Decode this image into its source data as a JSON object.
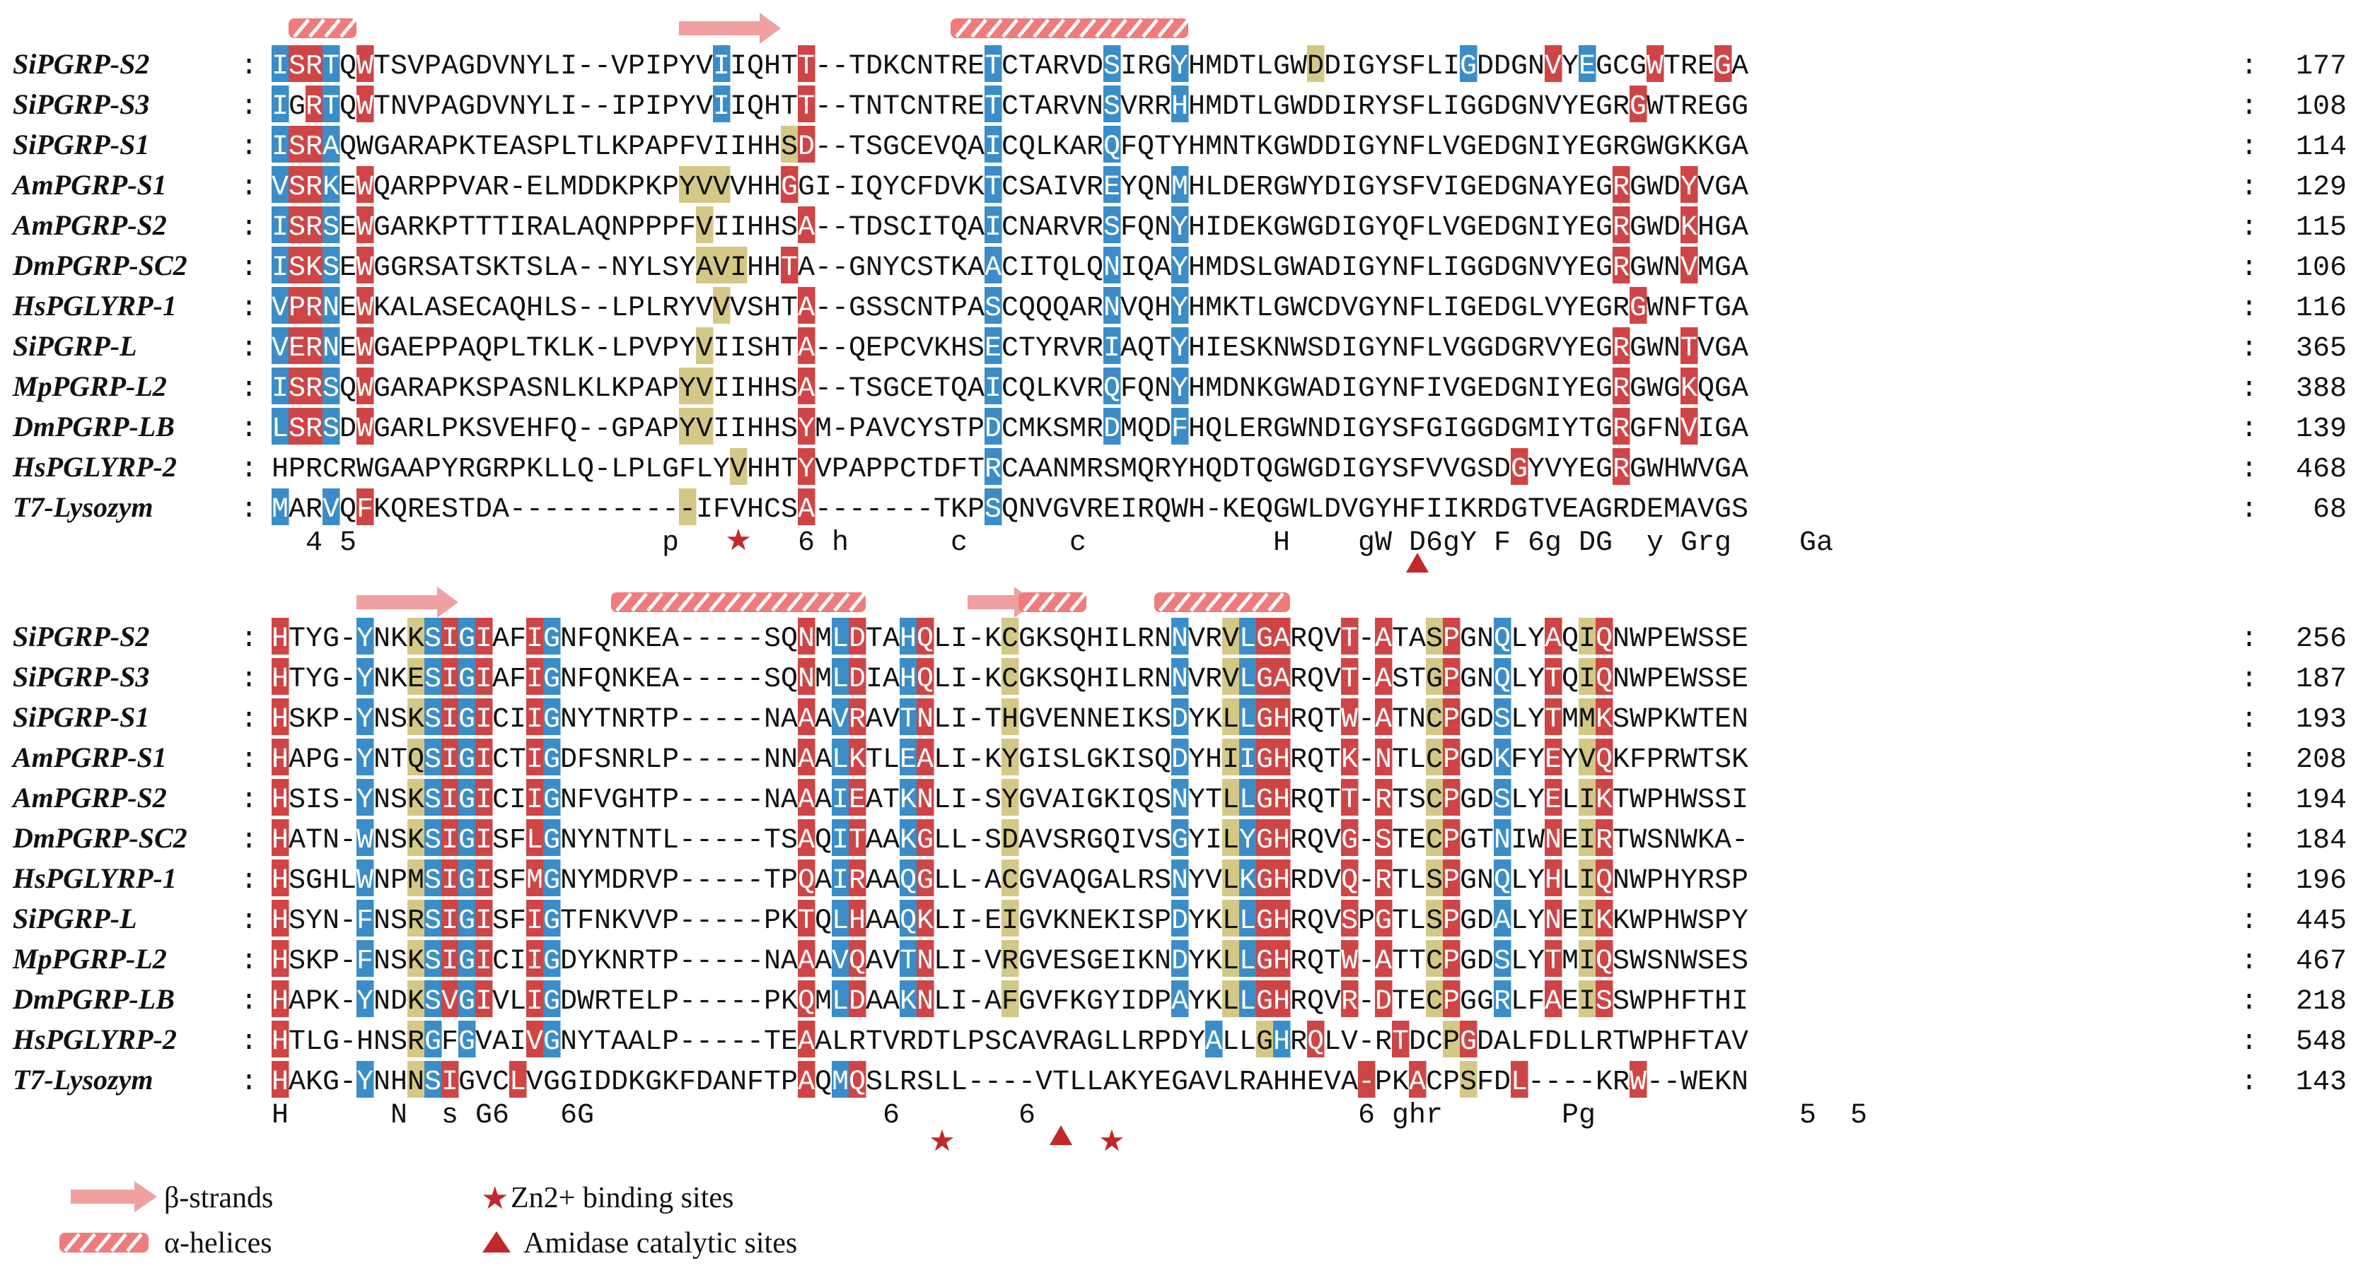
{
  "colors": {
    "red": "#cf4545",
    "blue": "#3a8dc8",
    "tan": "#d4c887",
    "strand": "#f0a0a0",
    "helix": "#f07b7b",
    "marker": "#c0282a",
    "text": "#111111"
  },
  "blocks": [
    {
      "id": "block-1",
      "rows": [
        {
          "name": "SiPGRP-S2",
          "seq": "ISRTQWTSVPAGDVNYLI--VPIPYVIIQHTT--TDKCNTRETCTARVDSIRGYHMDTLGWDDIGYSFLIGDDGNVYEGCGWTREGA",
          "end": "177"
        },
        {
          "name": "SiPGRP-S3",
          "seq": "IGRTQWTNVPAGDVNYLI--IPIPYVIIQHTT--TNTCNTRETCTARVNSVRRHHMDTLGWDDIRYSFLIGGDGNVYEGRGWTREGG",
          "end": "108"
        },
        {
          "name": "SiPGRP-S1",
          "seq": "ISRAQWGARAPKTEASPLTLKPAPFVIIHHSD--TSGCEVQAICQLKARQFQTYHMNTKGWDDIGYNFLVGEDGNIYEGRGWGKKGA",
          "end": "114"
        },
        {
          "name": "AmPGRP-S1",
          "seq": "VSRKEWQARPPVAR-ELMDDKPKPYVVVHHGGI-IQYCFDVKTCSAIVREYQNMHLDERGWYDIGYSFVIGEDGNAYEGRGWDYVGA",
          "end": "129"
        },
        {
          "name": "AmPGRP-S2",
          "seq": "ISRSEWGARKPTTTIRALAQNPPPFVIIHHSA--TDSCITQAICNARVRSFQNYHIDEKGWGDIGYQFLVGEDGNIYEGRGWDKHGA",
          "end": "115"
        },
        {
          "name": "DmPGRP-SC2",
          "seq": "ISKSEWGGRSATSKTSLA--NYLSYAVIHHTA--GNYCSTKAACITQLQNIQAYHMDSLGWADIGYNFLIGGDGNVYEGRGWNVMGA",
          "end": "106"
        },
        {
          "name": "HsPGLYRP-1",
          "seq": "VPRNEWKALASECAQHLS--LPLRYVVVSHTA--GSSCNTPASCQQQARNVQHYHMKTLGWCDVGYNFLIGEDGLVYEGRGWNFTGA",
          "end": "116"
        },
        {
          "name": "SiPGRP-L",
          "seq": "VERNEWGAEPPAQPLTKLK-LPVPYVIISHTA--QEPCVKHSECTYRVRIAQTYHIESKNWSDIGYNFLVGGDGRVYEGRGWNTVGA",
          "end": "365"
        },
        {
          "name": "MpPGRP-L2",
          "seq": "ISRSQWGARAPKSPASNLKLKPAPYVIIHHSA--TSGCETQAICQLKVRQFQNYHMDNKGWADIGYNFIVGEDGNIYEGRGWGKQGA",
          "end": "388"
        },
        {
          "name": "DmPGRP-LB",
          "seq": "LSRSDWGARLPKSVEHFQ--GPAPYVIIHHSYM-PAVCYSTPDCMKSMRDMQDFHQLERGWNDIGYSFGIGGDGMIYTGRGFNVIGA",
          "end": "139"
        },
        {
          "name": "HsPGLYRP-2",
          "seq": "HPRCRWGAAPYRGRPKLLQ-LPLGFLYVHHTYVPAPPCTDFTRCAANMRSMQRYHQDTQGWGDIGYSFVVGSDGYVYEGRGWHWVGA",
          "end": "468"
        },
        {
          "name": "T7-Lysozym",
          "seq": "MARVQFKQRESTDA-----------IFVHCSA-------TKPSQNVGVREIRQWH-KEQGWLDVGYHFIIKRDGTVEAGRDEMAVGS",
          "end": "68"
        }
      ],
      "consensus": "  4 5                  p       6 h      c      c           H    gW D6gY F 6g DG  y Grg    Ga",
      "colors": [
        "BRRB.R....................B....R..........B......B...B.......T........B....R.B...R...R..RR..B",
        "B.RB.R....................B....R..........B......B...B..........................R......BB...",
        "BRRB..........................TR..........B......B..........................................",
        "BRRB.R..................TTT...R...........B......B...B.........................R...R.......BR",
        "BRRB.R...................T.....R..........B......B...B.........................R...R.......BR",
        "BRRB.R...................TTT..R...........B......B...B.........................R...R.......BR",
        "BRRB.R....................T....R..........B......B...B..........................R......BB...",
        "BRRB.R...................T.....R..........B......B...B.........................R...R.......BR",
        "BRRB.R..................TT.....R..........B......B...B.........................R...R.......BR",
        "BRRB.R..................TT.....R..........B......B...B.........................R...R.......BR",
        "...........................T...R..........B..............................R.....R............",
        "B..B.R..................T......R..........B..................................................."
      ],
      "arrows": [
        {
          "from": 24,
          "to": 29
        }
      ],
      "helices": [
        {
          "from": 1,
          "to": 4
        },
        {
          "from": 40,
          "to": 53
        }
      ],
      "stars": [
        27
      ],
      "triangles": [
        67
      ],
      "ends_note": ""
    },
    {
      "id": "block-2",
      "rows": [
        {
          "name": "SiPGRP-S2",
          "seq": "HTYG-YNKKSIGIAFIGNFQNKEA-----SQNMLDTAHQLI-KCGKSQHILRNNVRVLGARQVT-ATASPGNQLYAQIQNWPEWSSE",
          "end": "256"
        },
        {
          "name": "SiPGRP-S3",
          "seq": "HTYG-YNKESIGIAFIGNFQNKEA-----SQNMLDIAHQLI-KCGKSQHILRNNVRVLGARQVT-ASTGPGNQLYTQIQNWPEWSSE",
          "end": "187"
        },
        {
          "name": "SiPGRP-S1",
          "seq": "HSKP-YNSKSIGICIIGNYTNRTP-----NAAAVRAVTNLI-THGVENNEIKSDYKLLGHRQTW-ATNCPGDSLYTMMKSWPKWTEN",
          "end": "193"
        },
        {
          "name": "AmPGRP-S1",
          "seq": "HAPG-YNTQSIGICTIGDFSNRLP-----NNAALKTLEALI-KYGISLGKISQDYHIIGHRQTK-NTLCPGDKFYEYVQKFPRWTSK",
          "end": "208"
        },
        {
          "name": "AmPGRP-S2",
          "seq": "HSIS-YNSKSIGICIIGNFVGHTP-----NAAAIEATKNLI-SYGVAIGKIQSNYTLLGHRQTT-RTSCPGDSLYELIKTWPHWSSI",
          "end": "194"
        },
        {
          "name": "DmPGRP-SC2",
          "seq": "HATN-WNSKSIGISFLGNYNTNTL-----TSAQITAAKGLL-SDAVSRGQIVSGYILYGHRQVG-STECPGTNIWNEIRTWSNWKA-",
          "end": "184"
        },
        {
          "name": "HsPGLYRP-1",
          "seq": "HSGHLWNPMSIGISFMGNYMDRVP-----TPQAIRAAQGLL-ACGVAQGALRSNYVLKGHRDVQ-RTLSPGNQLYHLIQNWPHYRSP",
          "end": "196"
        },
        {
          "name": "SiPGRP-L",
          "seq": "HSYN-FNSRSIGISFIGTFNKVVP-----PKTQLHAAQKLI-EIGVKNEKISPDYKLLGHRQVSPGTLSPGDALYNEIKKWPHWSPY",
          "end": "445"
        },
        {
          "name": "MpPGRP-L2",
          "seq": "HSKP-FNSKSIGICIIGDYKNRTP-----NAAAVQAVTNLI-VRGVESGEIKNDYKLLGHRQTW-ATTCPGDSLYTMIQSWSNWSES",
          "end": "467"
        },
        {
          "name": "DmPGRP-LB",
          "seq": "HAPK-YNDKSVGIVLIGDWRTELP-----PKQMLDAAKNLI-AFGVFKGYIDPAYKLLGHRQVR-DTECPGGRLFAEISSWPHFTHI",
          "end": "218"
        },
        {
          "name": "HsPGLYRP-2",
          "seq": "HTLG-HNSRGFGVAIVGNYTAALP-----TEAALRTVRDTLPSCAVRAGLLRPDYALLGHRQLV-RTDCPGDALFDLLRTWPHFTAV",
          "end": "548"
        },
        {
          "name": "T7-Lysozym",
          "seq": "HAKG-YNHNSIGVCLVGGIDDKGKFDANFTPAQMQSLRSLL----VTLLAKYEGAVLRAHHEVA-PKACPSFDL----KRW--WEKN",
          "end": "143"
        }
      ],
      "consensus": "H      N  s G6   6G                 6       6                   6 ghr       Pg            5  5",
      "colors": [
        "R....B..TBRBR..RB..............R.BR..BR....T.........B..TBRR...R.R..TR..B..R.TR..........",
        "R....B..TBRBR..RB..............R.BR..BR....T.........B..TBRR...R.R..TR..B..R.TR..........",
        "R....B..TBRBR..RB..............R.BR..BR....T.........B..TBRR...R.R..TR..B..R.TR..........",
        "R....B..TBRBR..RB..............R.BR..BR....T.........B..TBRR...R.R..TR..B..R.TR..........",
        "R....B..TBRBR..RB..............R.BR..BR....T.........B..TBRR...R.R..TR..B..R.TR..........",
        "R....B..TBRBR..RB..............R.BR..BR....T.........B..TBRR...R.R..TR..B..R.TR..........",
        "R....B..TBRBR..RB..............R.BR..BR....T.........B..TBRR...R.R..TR..B..R.TR..........",
        "R....B..TBRBR..RB..............R.BR..BR....T.........B..TBRR...R.R..TR..B..R.TR..........",
        "R....B..TBRBR..RB..............R.BR..BR....T.........B..TBRR...R.R..TR..B..R.TR..........",
        "R....B..TBRBR..RB..............R.BR..BR....T.........B..TBRR...R.R..TR..B..R.TR..........",
        "R.......TB.B...RB..............R.......................B..TB.R....R..TR...............",
        "R....B..TBR...R................R.BR.............................R..R..T..R......R.........."
      ],
      "arrows": [
        {
          "from": 5,
          "to": 10
        },
        {
          "from": 41,
          "to": 44
        }
      ],
      "helices": [
        {
          "from": 20,
          "to": 34
        },
        {
          "from": 44,
          "to": 47
        },
        {
          "from": 52,
          "to": 59
        }
      ],
      "stars": [
        39,
        49
      ],
      "triangles": [
        46
      ],
      "ends_note": ""
    }
  ],
  "legend": {
    "strand": "β-strands",
    "helix": "α-helices",
    "zn": "Zn2+ binding sites",
    "amidase": "Amidase catalytic sites"
  }
}
